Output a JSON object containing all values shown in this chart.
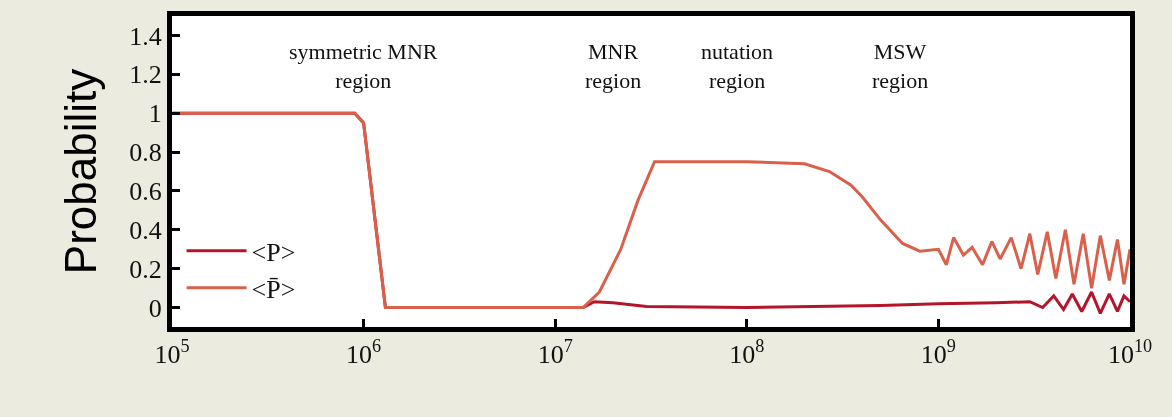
{
  "chart_data": {
    "type": "line",
    "ylabel": "Probability",
    "xlim": [
      100000,
      10000000000
    ],
    "log": "x",
    "xticks": [
      {
        "value": 100000,
        "label": "10$^{5}$"
      },
      {
        "value": 1000000,
        "label": "10$^{6}$"
      },
      {
        "value": 10000000,
        "label": "10$^{7}$"
      },
      {
        "value": 100000000,
        "label": "10$^{8}$"
      },
      {
        "value": 1000000000,
        "label": "10$^{9}$"
      },
      {
        "value": 10000000000,
        "label": "10$^{10}$"
      }
    ],
    "ylim": [
      -0.1,
      1.5
    ],
    "yticks": [
      0,
      0.2,
      0.4,
      0.6,
      0.8,
      1,
      1.2,
      1.4
    ],
    "legend": "bottom left",
    "marker": "none",
    "line_style": "solid",
    "series": [
      {
        "name": "<P>",
        "color": "#b5152b",
        "x": [
          100000,
          900000,
          1000000,
          1300000,
          14000000,
          16000000,
          20000000,
          30000000,
          100000000,
          500000000,
          1000000000,
          2000000000,
          3000000000,
          3500000000,
          4000000000,
          4500000000,
          5000000000,
          5600000000,
          6300000000,
          7000000000,
          7800000000,
          8600000000,
          9300000000,
          10000000000
        ],
        "values": [
          1,
          1,
          0.95,
          0,
          0,
          0.03,
          0.025,
          0.005,
          0,
          0.01,
          0.02,
          0.025,
          0.03,
          0.0,
          0.06,
          -0.01,
          0.07,
          -0.02,
          0.08,
          -0.03,
          0.07,
          -0.02,
          0.06,
          0.03
        ]
      },
      {
        "name": "<P̄>",
        "color": "#d9604a",
        "x": [
          100000,
          500000,
          900000,
          1000000,
          1300000,
          5000000,
          14000000,
          17000000,
          22000000,
          27000000,
          33000000,
          100000000,
          200000000,
          270000000,
          350000000,
          400000000,
          500000000,
          650000000,
          800000000,
          1000000000,
          1100000000,
          1200000000,
          1350000000,
          1500000000,
          1700000000,
          1900000000,
          2100000000,
          2400000000,
          2700000000,
          3000000000,
          3300000000,
          3700000000,
          4100000000,
          4600000000,
          5100000000,
          5700000000,
          6300000000,
          7000000000,
          7800000000,
          8600000000,
          9300000000,
          10000000000
        ],
        "values": [
          1,
          1,
          1,
          0.95,
          0,
          0,
          0,
          0.08,
          0.3,
          0.55,
          0.75,
          0.75,
          0.74,
          0.7,
          0.63,
          0.57,
          0.45,
          0.33,
          0.29,
          0.3,
          0.22,
          0.36,
          0.27,
          0.31,
          0.22,
          0.34,
          0.25,
          0.36,
          0.2,
          0.38,
          0.17,
          0.39,
          0.15,
          0.4,
          0.12,
          0.38,
          0.1,
          0.37,
          0.14,
          0.35,
          0.12,
          0.3
        ]
      }
    ],
    "annotations": [
      "symmetric MNR\nregion",
      "MNR\nregion",
      "nutation\nregion",
      "MSW\nregion"
    ]
  }
}
